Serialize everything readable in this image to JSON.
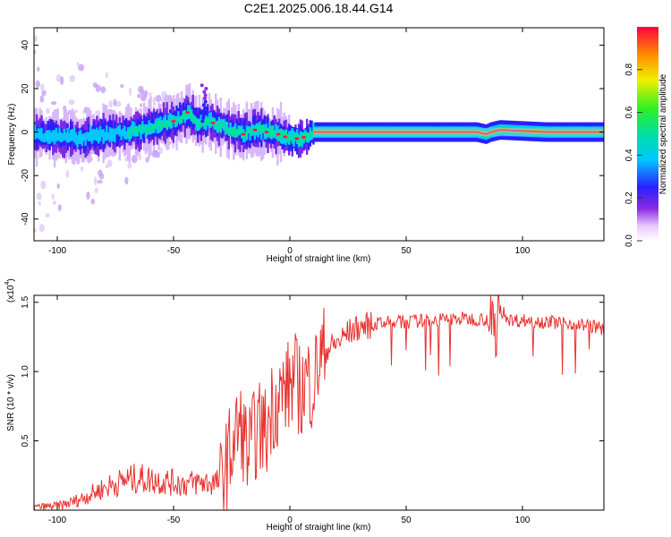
{
  "title": "C2E1.2025.006.18.44.G14",
  "chart_data": [
    {
      "type": "heatmap",
      "title": "C2E1.2025.006.18.44.G14",
      "xlabel": "Height of straight line (km)",
      "ylabel": "Frequency (Hz)",
      "xlim": [
        -110,
        135
      ],
      "ylim": [
        -50,
        48
      ],
      "xticks": [
        -100,
        -50,
        0,
        50,
        100
      ],
      "yticks": [
        -40,
        -20,
        0,
        20,
        40
      ],
      "colorbar": {
        "label": "Normalized spectral amplitude",
        "range": [
          0,
          1
        ],
        "ticks": [
          "0.0",
          "0.2",
          "0.4",
          "0.6",
          "0.8"
        ],
        "tick_values": [
          0.0,
          0.2,
          0.4,
          0.6,
          0.8
        ]
      },
      "ridge": {
        "description": "Dominant frequency ridge",
        "x": [
          -108,
          -100,
          -90,
          -80,
          -70,
          -60,
          -50,
          -44,
          -40,
          -35,
          -30,
          -25,
          -20,
          -15,
          -10,
          -5,
          0,
          5,
          10,
          20,
          40,
          60,
          80,
          84,
          86,
          90,
          110,
          135
        ],
        "y": [
          -1,
          -2,
          -3,
          -1,
          0,
          2,
          5,
          9,
          4,
          5,
          3,
          1,
          -1,
          1,
          0,
          -1,
          -3,
          -3,
          0,
          0,
          0,
          0,
          0,
          -1,
          0,
          1,
          0,
          0
        ]
      }
    },
    {
      "type": "line",
      "xlabel": "Height of straight line (km)",
      "ylabel": "SNR (10 * v/v)",
      "yscale_label": "(x10",
      "yscale_exponent": "4",
      "xlim": [
        -110,
        135
      ],
      "ylim": [
        0,
        1.55
      ],
      "xticks": [
        -100,
        -50,
        0,
        50,
        100
      ],
      "yticks": [
        "0.5",
        "1.0",
        "1.5"
      ],
      "ytick_values": [
        0.5,
        1.0,
        1.5
      ],
      "series": [
        {
          "name": "SNR",
          "color": "#e8322e",
          "x": [
            -110,
            -100,
            -95,
            -90,
            -85,
            -80,
            -75,
            -70,
            -65,
            -60,
            -55,
            -50,
            -45,
            -40,
            -35,
            -30,
            -28,
            -25,
            -22,
            -20,
            -18,
            -15,
            -12,
            -10,
            -8,
            -5,
            -3,
            0,
            2,
            5,
            7,
            10,
            12,
            15,
            20,
            25,
            30,
            40,
            50,
            60,
            70,
            80,
            85,
            88,
            90,
            95,
            100,
            110,
            120,
            130,
            135
          ],
          "y": [
            0.02,
            0.03,
            0.05,
            0.08,
            0.12,
            0.16,
            0.19,
            0.22,
            0.23,
            0.22,
            0.21,
            0.2,
            0.19,
            0.2,
            0.2,
            0.2,
            0.3,
            0.45,
            0.6,
            0.55,
            0.4,
            0.55,
            0.6,
            0.55,
            0.75,
            0.8,
            0.85,
            0.9,
            0.95,
            0.85,
            0.95,
            0.9,
            1.05,
            1.15,
            1.2,
            1.28,
            1.32,
            1.35,
            1.36,
            1.37,
            1.38,
            1.38,
            1.38,
            1.25,
            1.45,
            1.37,
            1.37,
            1.36,
            1.35,
            1.33,
            1.3
          ]
        }
      ]
    }
  ]
}
